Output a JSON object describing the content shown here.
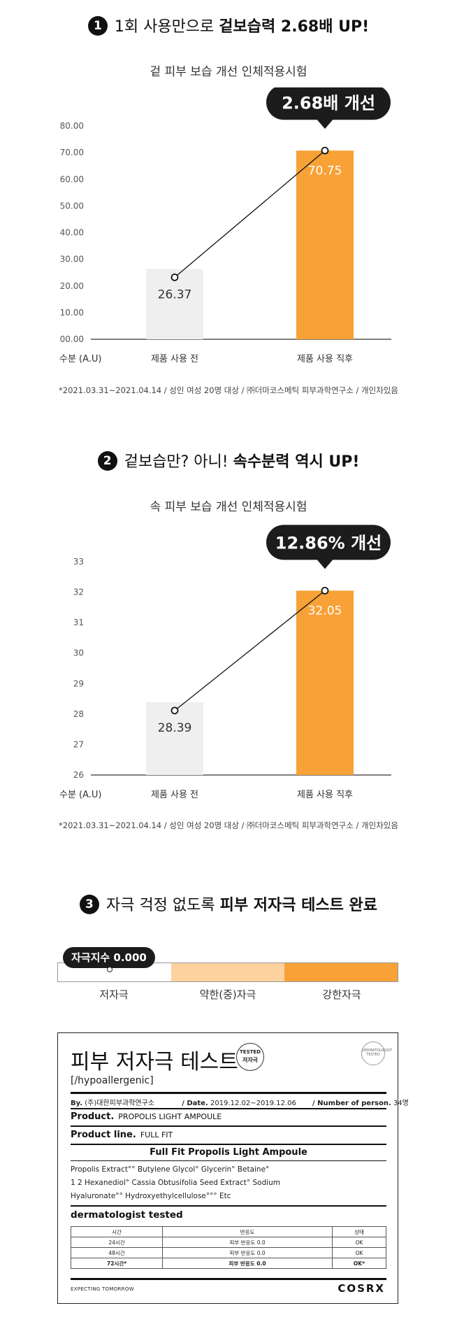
{
  "section1": {
    "num": "1",
    "title_plain": "1회 사용만으로 ",
    "title_bold": "겉보습력 2.68배 UP!",
    "subtitle": "겉 피부 보습 개선 인체적용시험",
    "footnote": "*2021.03.31~2021.04.14 / 성인 여성 20명 대상 / ㈜더마코스메틱 피부과학연구소 / 개인차있음"
  },
  "section2": {
    "num": "2",
    "title_plain": "겉보습만? 아니! ",
    "title_bold": "속수분력 역시 UP!",
    "subtitle": "속 피부 보습 개선 인체적용시험",
    "footnote": "*2021.03.31~2021.04.14 / 성인 여성 20명 대상 / ㈜더마코스메틱 피부과학연구소 / 개인차있음"
  },
  "section3": {
    "num": "3",
    "title_plain": "자극 걱정 없도록 ",
    "title_bold": "피부 저자극 테스트 완료",
    "score_label": "자극지수 0.000",
    "scale_labels": [
      "저자극",
      "약한(중)자극",
      "강한자극"
    ],
    "scale_colors": [
      "#ffffff",
      "#fdd29f",
      "#f7a136"
    ]
  },
  "chart_data": [
    {
      "type": "bar",
      "categories": [
        "제품 사용 전",
        "제품 사용 직후"
      ],
      "values": [
        26.37,
        70.75
      ],
      "value_labels": [
        "26.37",
        "70.75"
      ],
      "ylabel": "수분 (A.U)",
      "ylim": [
        0,
        80
      ],
      "y_ticks": [
        "00.00",
        "10.00",
        "20.00",
        "30.00",
        "40.00",
        "50.00",
        "60.00",
        "70.00",
        "80.00"
      ],
      "callout": "2.68배 개선",
      "colors": [
        "#efefef",
        "#f7a136"
      ],
      "grid": false
    },
    {
      "type": "bar",
      "categories": [
        "제품 사용 전",
        "제품 사용 직후"
      ],
      "values": [
        28.39,
        32.05
      ],
      "value_labels": [
        "28.39",
        "32.05"
      ],
      "ylabel": "수분 (A.U)",
      "ylim": [
        26,
        33
      ],
      "y_ticks": [
        "26",
        "27",
        "28",
        "29",
        "30",
        "31",
        "32",
        "33"
      ],
      "callout": "12.86% 개선",
      "colors": [
        "#efefef",
        "#f7a136"
      ],
      "grid": false
    }
  ],
  "cert": {
    "title": "피부 저자극 테스트",
    "stamp_top": "TESTED",
    "stamp_bottom": "저자극",
    "seal": "DERMATOLOGIST TESTED",
    "hypo": "[/hypoallergenic]",
    "by_label": "By.",
    "by_value": "(주)대한피부과학연구소",
    "date_label": "/ Date.",
    "date_value": "2019.12.02~2019.12.06",
    "num_label": "/ Number of person.",
    "num_value": "34명",
    "product_label": "Product.",
    "product_value": "PROPOLIS LIGHT AMPOULE",
    "line_label": "Product line.",
    "line_value": "FULL FIT",
    "product_full": "Full Fit Propolis Light Ampoule",
    "ingredients": [
      "Propolis Extract°° Butylene Glycol° Glycerin° Betaine°",
      "1 2 Hexanediol° Cassia Obtusifolia Seed Extract° Sodium",
      "Hyaluronate°° Hydroxyethylcellulose°°° Etc"
    ],
    "derm": "dermatologist tested",
    "table_headers": [
      "시간",
      "반응도",
      "상태"
    ],
    "table_rows": [
      [
        "24시간",
        "피부 반응도 0.0",
        "OK"
      ],
      [
        "48시간",
        "피부 반응도 0.0",
        "OK"
      ],
      [
        "72시간*",
        "피부 반응도 0.0",
        "OK*"
      ]
    ],
    "footer_left": "EXPECTING TOMORROW",
    "footer_right": "COSRX"
  }
}
